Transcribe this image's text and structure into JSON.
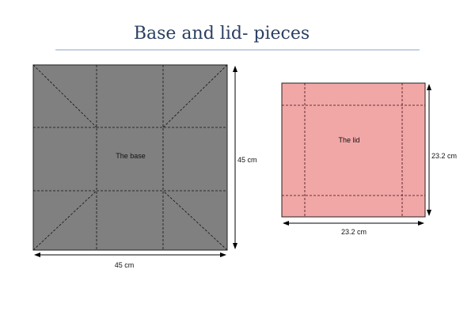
{
  "title": "Base and lid- pieces",
  "base": {
    "label": "The base",
    "width_label": "45 cm",
    "height_label": "45 cm",
    "fill": "#808080"
  },
  "lid": {
    "label": "The lid",
    "width_label": "23.2 cm",
    "height_label": "23.2 cm",
    "fill": "#f2a7a7"
  },
  "colors": {
    "title": "#2b3f62",
    "rule": "#8aa4c8"
  }
}
